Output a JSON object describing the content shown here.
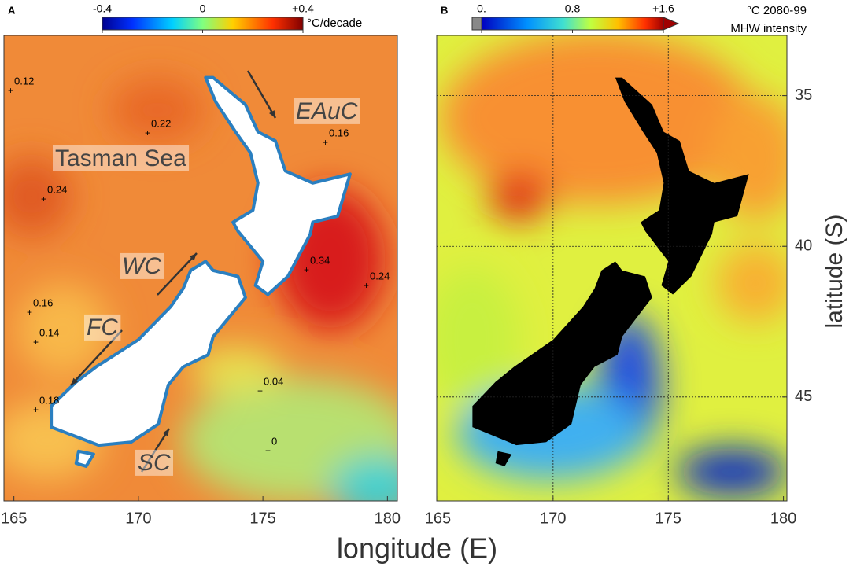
{
  "panel_a": {
    "label": "A",
    "colorbar": {
      "range": [
        -0.4,
        0.4
      ],
      "ticks": [
        {
          "value": -0.4,
          "label": "-0.4"
        },
        0,
        {
          "value": 0.4,
          "label": "+0.4"
        }
      ],
      "unit": "°C/decade"
    },
    "xlim": [
      164.6,
      180.4
    ],
    "ylim": [
      33,
      48.45
    ],
    "xticks": [
      165,
      170,
      175,
      180
    ],
    "contour_labels": [
      0.12,
      0.22,
      0.16,
      0.24,
      0.34,
      0.24,
      0.16,
      0.14,
      0.18,
      0.04,
      0
    ],
    "region_labels": [
      "Tasman Sea",
      "EAuC",
      "WC",
      "FC",
      "SC"
    ]
  },
  "panel_b": {
    "label": "B",
    "colorbar": {
      "range": [
        0,
        1.6
      ],
      "ticks": [
        {
          "value": 0,
          "label": "0."
        },
        0.8,
        {
          "value": 1.6,
          "label": "+1.6"
        }
      ],
      "unit": "°C 2080-99",
      "caption": "MHW intensity"
    },
    "xlim": [
      164.95,
      180.15
    ],
    "ylim": [
      33,
      48.45
    ],
    "xticks": [
      165,
      170,
      175,
      180
    ],
    "yticks": [
      35,
      40,
      45
    ]
  },
  "x_axis_label": "longitude (E)",
  "y_axis_label": "latitude (S)"
}
